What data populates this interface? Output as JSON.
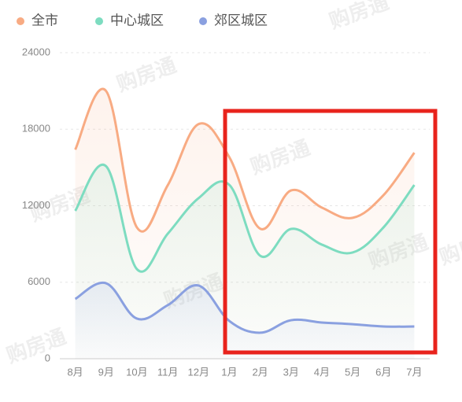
{
  "chart_data": {
    "type": "line",
    "watermark": "购房通",
    "categories": [
      "8月",
      "9月",
      "10月",
      "11月",
      "12月",
      "1月",
      "2月",
      "3月",
      "4月",
      "5月",
      "6月",
      "7月"
    ],
    "series": [
      {
        "name": "全市",
        "color": "#f8ab83",
        "values": [
          16400,
          21000,
          10300,
          13600,
          18400,
          15800,
          10200,
          13200,
          11850,
          11050,
          12830,
          16160
        ]
      },
      {
        "name": "中心城区",
        "color": "#7ddcc0",
        "values": [
          11600,
          15100,
          7030,
          9800,
          12590,
          13630,
          8080,
          10180,
          8950,
          8330,
          10300,
          13630
        ]
      },
      {
        "name": "郊区城区",
        "color": "#8aa0e0",
        "values": [
          4690,
          5920,
          3150,
          4200,
          5740,
          2960,
          2040,
          3020,
          2840,
          2710,
          2530,
          2530
        ]
      }
    ],
    "ylim": [
      0,
      24000
    ],
    "yticks": [
      0,
      6000,
      12000,
      18000,
      24000
    ],
    "grid": true,
    "legend": "top-left"
  }
}
